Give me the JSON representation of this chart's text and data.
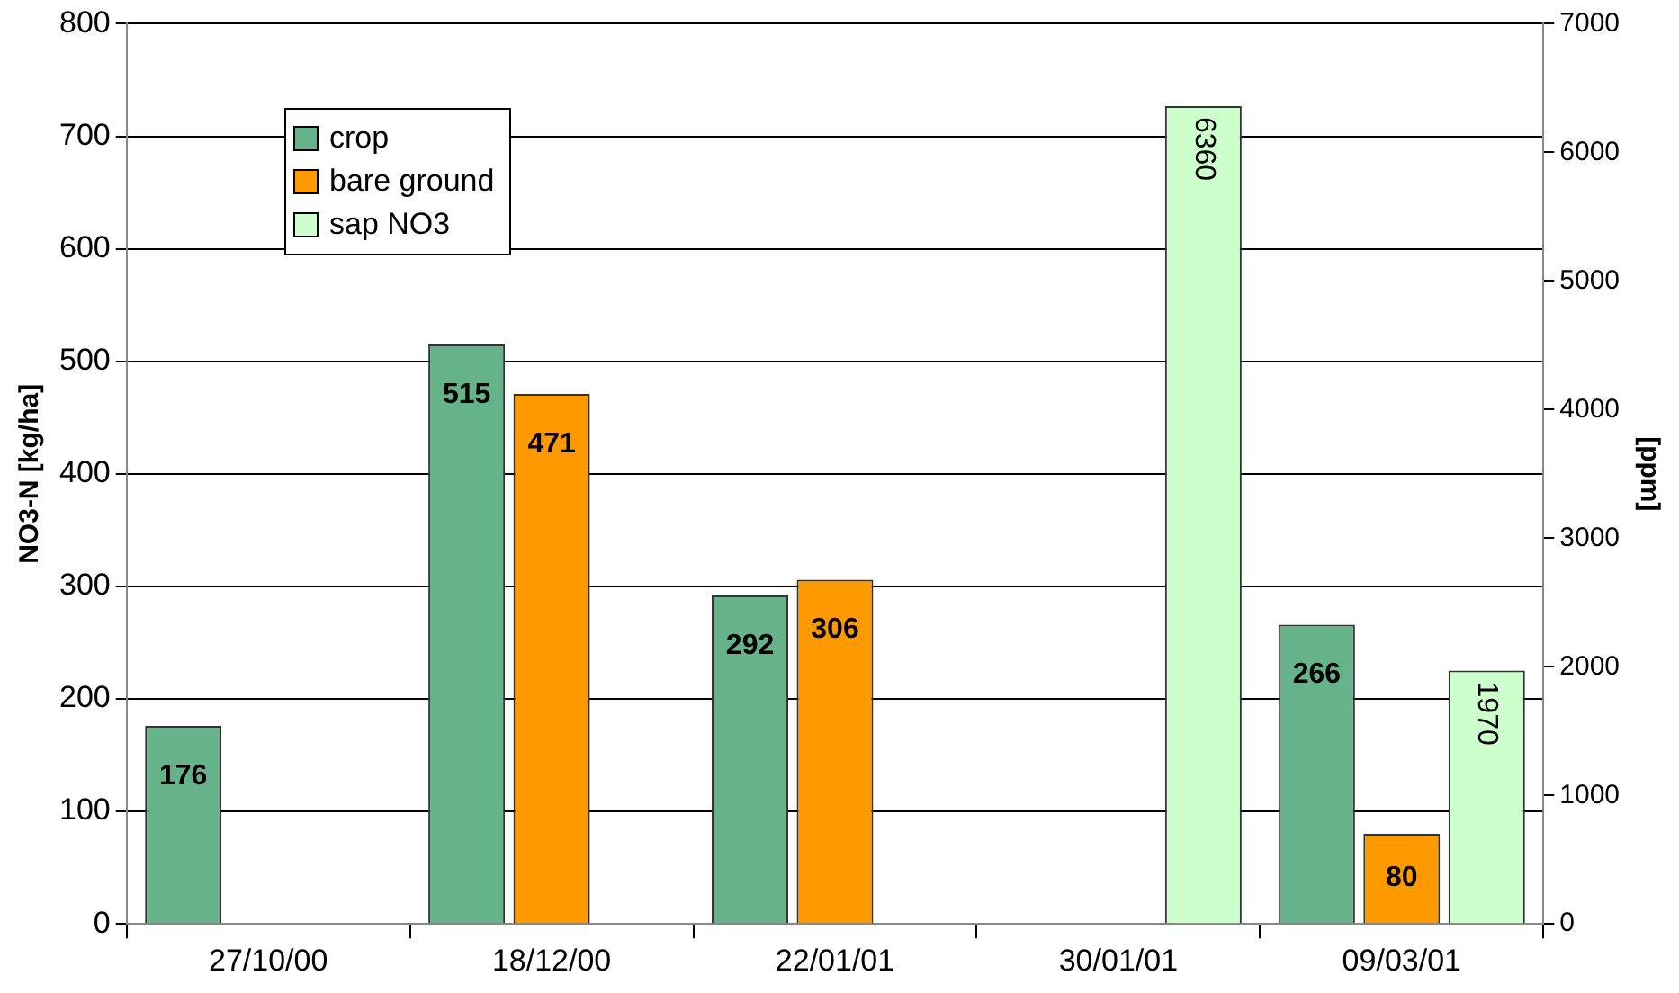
{
  "chart_data": {
    "type": "bar",
    "ylabel": "NO3-N [kg/ha]",
    "y2label": "[ppm]",
    "categories": [
      "27/10/00",
      "18/12/00",
      "22/01/01",
      "30/01/01",
      "09/03/01"
    ],
    "series": [
      {
        "name": "crop",
        "color": "#66b38a",
        "values": [
          176,
          515,
          292,
          null,
          266
        ]
      },
      {
        "name": "bare ground",
        "color": "#ff9900",
        "values": [
          null,
          471,
          306,
          null,
          80
        ]
      },
      {
        "name": "sap NO3",
        "color": "#ccffcc",
        "values": [
          null,
          null,
          null,
          6360,
          1970
        ],
        "axis": "y2"
      }
    ],
    "ylim": [
      0,
      800
    ],
    "yticks": [
      0,
      100,
      200,
      300,
      400,
      500,
      600,
      700,
      800
    ],
    "y2lim": [
      0,
      7000
    ],
    "y2ticks": [
      0,
      1000,
      2000,
      3000,
      4000,
      5000,
      6000,
      7000
    ],
    "grid": "y",
    "legend": "top left",
    "data_labels": true
  }
}
